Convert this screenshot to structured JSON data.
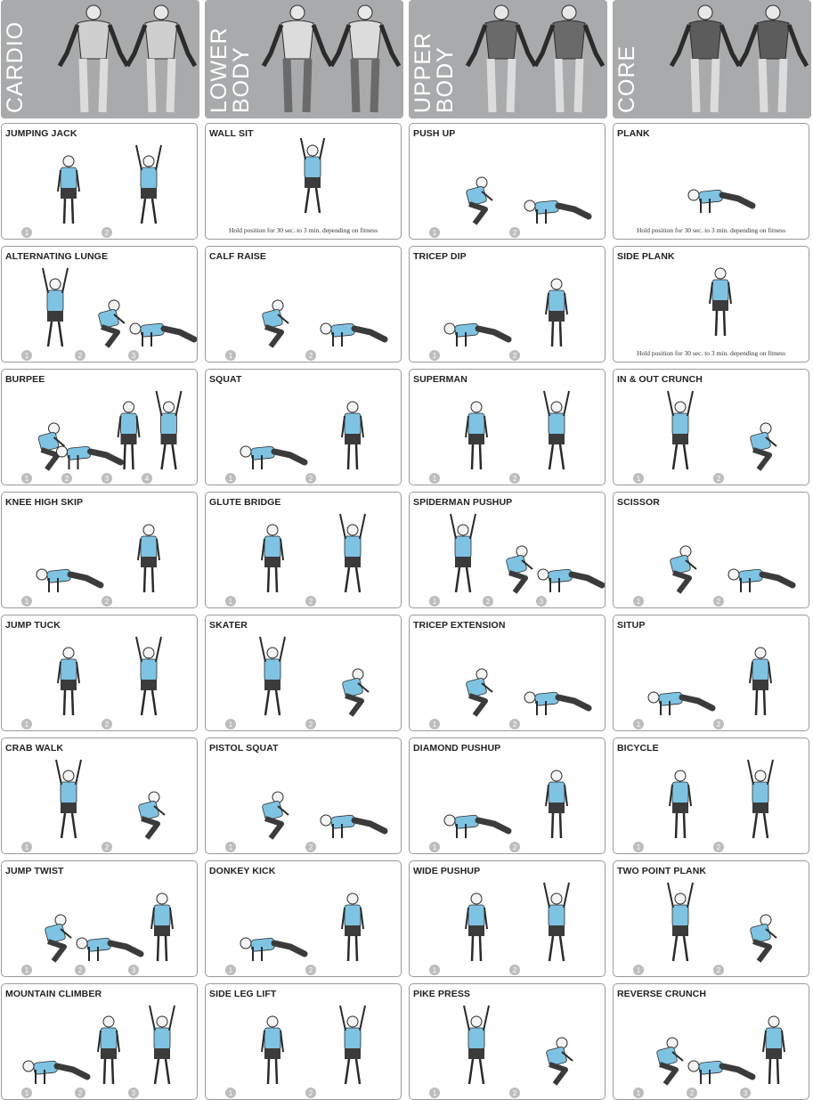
{
  "colors": {
    "header_bg": "#a9aaab",
    "shirt": "#7fc3e3",
    "pants": "#3b3b3b",
    "step_badge": "#bdbdbd",
    "card_border": "#9a9a9a"
  },
  "columns": [
    {
      "title": "CARDIO",
      "exercises": [
        {
          "name": "JUMPING JACK",
          "steps": [
            "1",
            "2"
          ],
          "note": ""
        },
        {
          "name": "ALTERNATING LUNGE",
          "steps": [
            "1",
            "2",
            "3"
          ],
          "note": ""
        },
        {
          "name": "BURPEE",
          "steps": [
            "1",
            "2",
            "3",
            "4"
          ],
          "note": ""
        },
        {
          "name": "KNEE HIGH SKIP",
          "steps": [
            "1",
            "2"
          ],
          "note": ""
        },
        {
          "name": "JUMP TUCK",
          "steps": [
            "1",
            "2"
          ],
          "note": ""
        },
        {
          "name": "CRAB WALK",
          "steps": [
            "1",
            "2"
          ],
          "note": ""
        },
        {
          "name": "JUMP TWIST",
          "steps": [
            "1",
            "2",
            "3"
          ],
          "note": ""
        },
        {
          "name": "MOUNTAIN CLIMBER",
          "steps": [
            "1",
            "2",
            "3"
          ],
          "note": ""
        }
      ]
    },
    {
      "title": "LOWER\nBODY",
      "exercises": [
        {
          "name": "WALL SIT",
          "steps": [],
          "note": "Hold position for 30 sec. to 3 min. depending on fitness"
        },
        {
          "name": "CALF RAISE",
          "steps": [
            "1",
            "2"
          ],
          "note": ""
        },
        {
          "name": "SQUAT",
          "steps": [
            "1",
            "2"
          ],
          "note": ""
        },
        {
          "name": "GLUTE BRIDGE",
          "steps": [
            "1",
            "2"
          ],
          "note": ""
        },
        {
          "name": "SKATER",
          "steps": [
            "1",
            "2"
          ],
          "note": ""
        },
        {
          "name": "PISTOL SQUAT",
          "steps": [
            "1",
            "2"
          ],
          "note": ""
        },
        {
          "name": "DONKEY KICK",
          "steps": [
            "1",
            "2"
          ],
          "note": ""
        },
        {
          "name": "SIDE LEG LIFT",
          "steps": [
            "1",
            "2"
          ],
          "note": ""
        }
      ]
    },
    {
      "title": "UPPER\nBODY",
      "exercises": [
        {
          "name": "PUSH UP",
          "steps": [
            "1",
            "2"
          ],
          "note": ""
        },
        {
          "name": "TRICEP DIP",
          "steps": [
            "1",
            "2"
          ],
          "note": ""
        },
        {
          "name": "SUPERMAN",
          "steps": [
            "1",
            "2"
          ],
          "note": ""
        },
        {
          "name": "SPIDERMAN PUSHUP",
          "steps": [
            "1",
            "2",
            "3"
          ],
          "note": ""
        },
        {
          "name": "TRICEP EXTENSION",
          "steps": [
            "1",
            "2"
          ],
          "note": ""
        },
        {
          "name": "DIAMOND PUSHUP",
          "steps": [
            "1",
            "2"
          ],
          "note": ""
        },
        {
          "name": "WIDE PUSHUP",
          "steps": [
            "1",
            "2"
          ],
          "note": ""
        },
        {
          "name": "PIKE PRESS",
          "steps": [
            "1",
            "2"
          ],
          "note": ""
        }
      ]
    },
    {
      "title": "CORE",
      "exercises": [
        {
          "name": "PLANK",
          "steps": [],
          "note": "Hold position for 30 sec. to 3 min. depending on fitness"
        },
        {
          "name": "SIDE PLANK",
          "steps": [],
          "note": "Hold position for 30 sec. to 3 min. depending on fitness"
        },
        {
          "name": "IN & OUT CRUNCH",
          "steps": [
            "1",
            "2"
          ],
          "note": ""
        },
        {
          "name": "SCISSOR",
          "steps": [
            "1",
            "2"
          ],
          "note": ""
        },
        {
          "name": "SITUP",
          "steps": [
            "1",
            "2"
          ],
          "note": ""
        },
        {
          "name": "BICYCLE",
          "steps": [
            "1",
            "2"
          ],
          "note": ""
        },
        {
          "name": "TWO POINT PLANK",
          "steps": [
            "1",
            "2"
          ],
          "note": ""
        },
        {
          "name": "REVERSE CRUNCH",
          "steps": [
            "1",
            "2",
            "3"
          ],
          "note": ""
        }
      ]
    }
  ]
}
